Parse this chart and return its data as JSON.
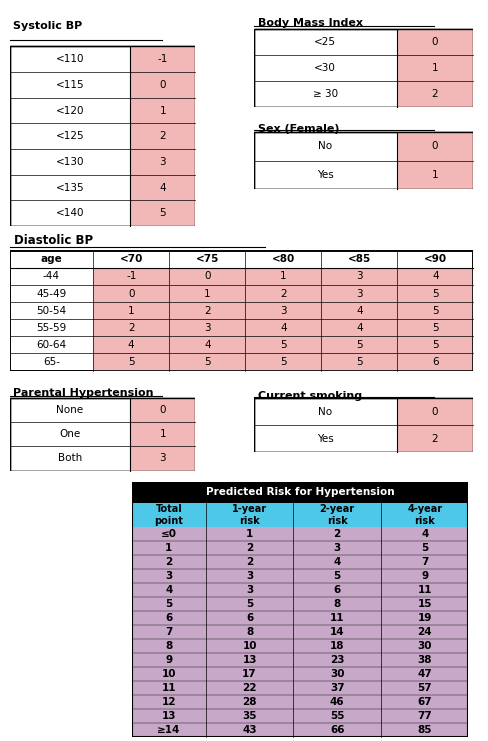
{
  "systolic_bp": {
    "title": "Systolic BP",
    "rows": [
      "<110",
      "<115",
      "<120",
      "<125",
      "<130",
      "<135",
      "<140"
    ],
    "values": [
      "-1",
      "0",
      "1",
      "2",
      "3",
      "4",
      "5"
    ]
  },
  "bmi": {
    "title": "Body Mass Index",
    "rows": [
      "<25",
      "<30",
      "≥ 30"
    ],
    "values": [
      "0",
      "1",
      "2"
    ]
  },
  "sex": {
    "title": "Sex (Female)",
    "rows": [
      "No",
      "Yes"
    ],
    "values": [
      "0",
      "1"
    ]
  },
  "diastolic_bp": {
    "title": "Diastolic BP",
    "col_header": [
      "age",
      "<70",
      "<75",
      "<80",
      "<85",
      "<90"
    ],
    "rows": [
      "-44",
      "45-49",
      "50-54",
      "55-59",
      "60-64",
      "65-"
    ],
    "data": [
      [
        "-1",
        "0",
        "1",
        "3",
        "4"
      ],
      [
        "0",
        "1",
        "2",
        "3",
        "5"
      ],
      [
        "1",
        "2",
        "3",
        "4",
        "5"
      ],
      [
        "2",
        "3",
        "4",
        "4",
        "5"
      ],
      [
        "4",
        "4",
        "5",
        "5",
        "5"
      ],
      [
        "5",
        "5",
        "5",
        "5",
        "6"
      ]
    ]
  },
  "parental": {
    "title": "Parental Hypertension",
    "rows": [
      "None",
      "One",
      "Both"
    ],
    "values": [
      "0",
      "1",
      "3"
    ]
  },
  "smoking": {
    "title": "Current smoking",
    "rows": [
      "No",
      "Yes"
    ],
    "values": [
      "0",
      "2"
    ]
  },
  "predicted": {
    "title": "Predicted Risk for Hypertension",
    "col_headers": [
      "Total\npoint",
      "1-year\nrisk",
      "2-year\nrisk",
      "4-year\nrisk"
    ],
    "rows": [
      "≤0",
      "1",
      "2",
      "3",
      "4",
      "5",
      "6",
      "7",
      "8",
      "9",
      "10",
      "11",
      "12",
      "13",
      "≥14"
    ],
    "data": [
      [
        "1",
        "2",
        "4"
      ],
      [
        "2",
        "3",
        "5"
      ],
      [
        "2",
        "4",
        "7"
      ],
      [
        "3",
        "5",
        "9"
      ],
      [
        "3",
        "6",
        "11"
      ],
      [
        "5",
        "8",
        "15"
      ],
      [
        "6",
        "11",
        "19"
      ],
      [
        "8",
        "14",
        "24"
      ],
      [
        "10",
        "18",
        "30"
      ],
      [
        "13",
        "23",
        "38"
      ],
      [
        "17",
        "30",
        "47"
      ],
      [
        "22",
        "37",
        "57"
      ],
      [
        "28",
        "46",
        "67"
      ],
      [
        "35",
        "55",
        "77"
      ],
      [
        "43",
        "66",
        "85"
      ]
    ]
  },
  "colors": {
    "pink_fill": "#F2B8B8",
    "blue_header": "#4DC8E8",
    "purple_fill": "#C8A8C8",
    "black_header": "#000000",
    "white": "#FFFFFF"
  }
}
